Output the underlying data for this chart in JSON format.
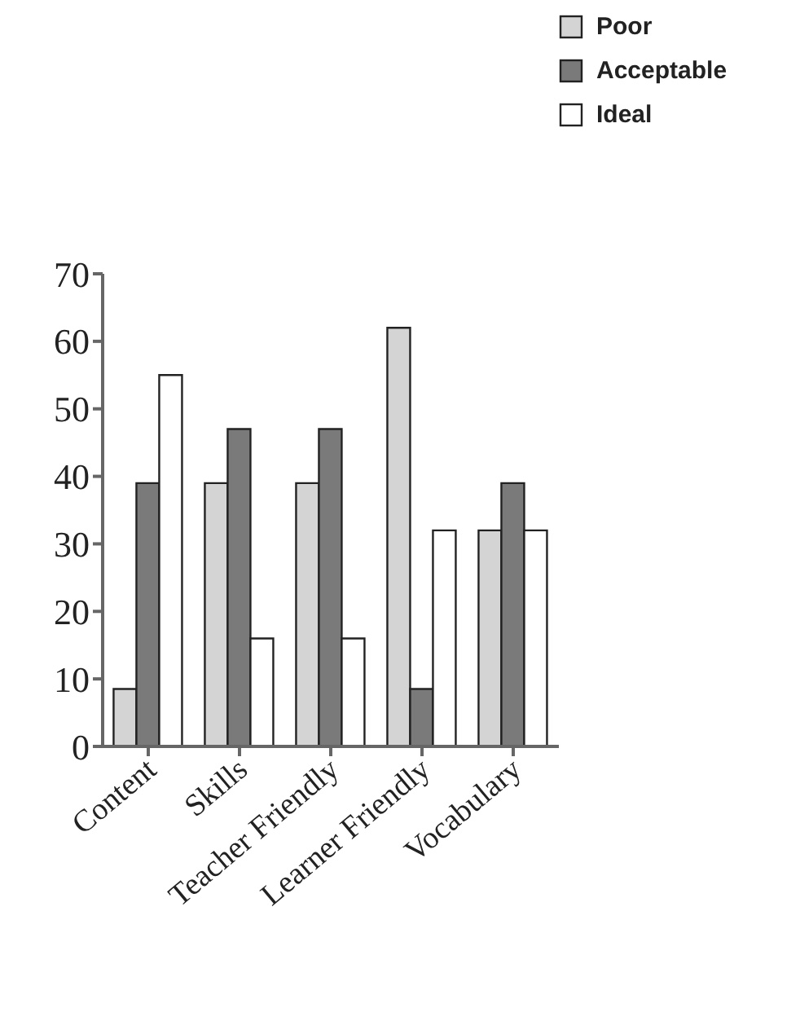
{
  "chart_data": {
    "type": "bar",
    "categories": [
      "Content",
      "Skills",
      "Teacher Friendly",
      "Learner Friendly",
      "Vocabulary"
    ],
    "series": [
      {
        "name": "Poor",
        "color": "#d4d4d4",
        "values": [
          8.5,
          39,
          39,
          62,
          32
        ]
      },
      {
        "name": "Acceptable",
        "color": "#7a7a7a",
        "values": [
          39,
          47,
          47,
          8.5,
          39
        ]
      },
      {
        "name": "Ideal",
        "color": "#ffffff",
        "values": [
          55,
          16,
          16,
          32,
          32
        ]
      }
    ],
    "ylim": [
      0,
      70
    ],
    "yticks": [
      0,
      10,
      20,
      30,
      40,
      50,
      60,
      70
    ],
    "grid": false,
    "legend": "top right"
  }
}
